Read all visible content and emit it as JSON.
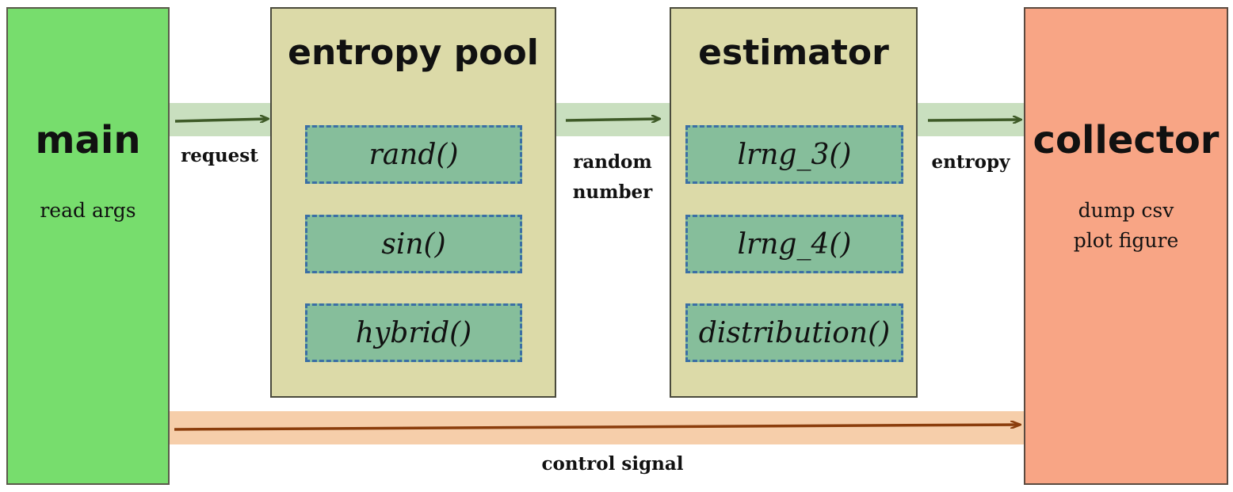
{
  "main": {
    "title": "main",
    "subtitle": "read args"
  },
  "entropy_pool": {
    "title": "entropy pool",
    "functions": [
      "rand()",
      "sin()",
      "hybrid()"
    ]
  },
  "estimator": {
    "title": "estimator",
    "functions": [
      "lrng_3()",
      "lrng_4()",
      "distribution()"
    ]
  },
  "collector": {
    "title": "collector",
    "lines": [
      "dump csv",
      "plot figure"
    ]
  },
  "connectors": {
    "request": "request",
    "random_number_line1": "random",
    "random_number_line2": "number",
    "entropy": "entropy",
    "control_signal": "control signal"
  },
  "colors": {
    "main_fill": "#77dd6d",
    "module_fill": "#dcdaa8",
    "collector_fill": "#f8a585",
    "function_fill": "#86be9b",
    "function_border": "#3b6fa5",
    "data_arrow": "#3e5a27",
    "data_band": "#c9dfbf",
    "control_arrow": "#8b3d0c",
    "control_band": "#f6ceaa"
  }
}
